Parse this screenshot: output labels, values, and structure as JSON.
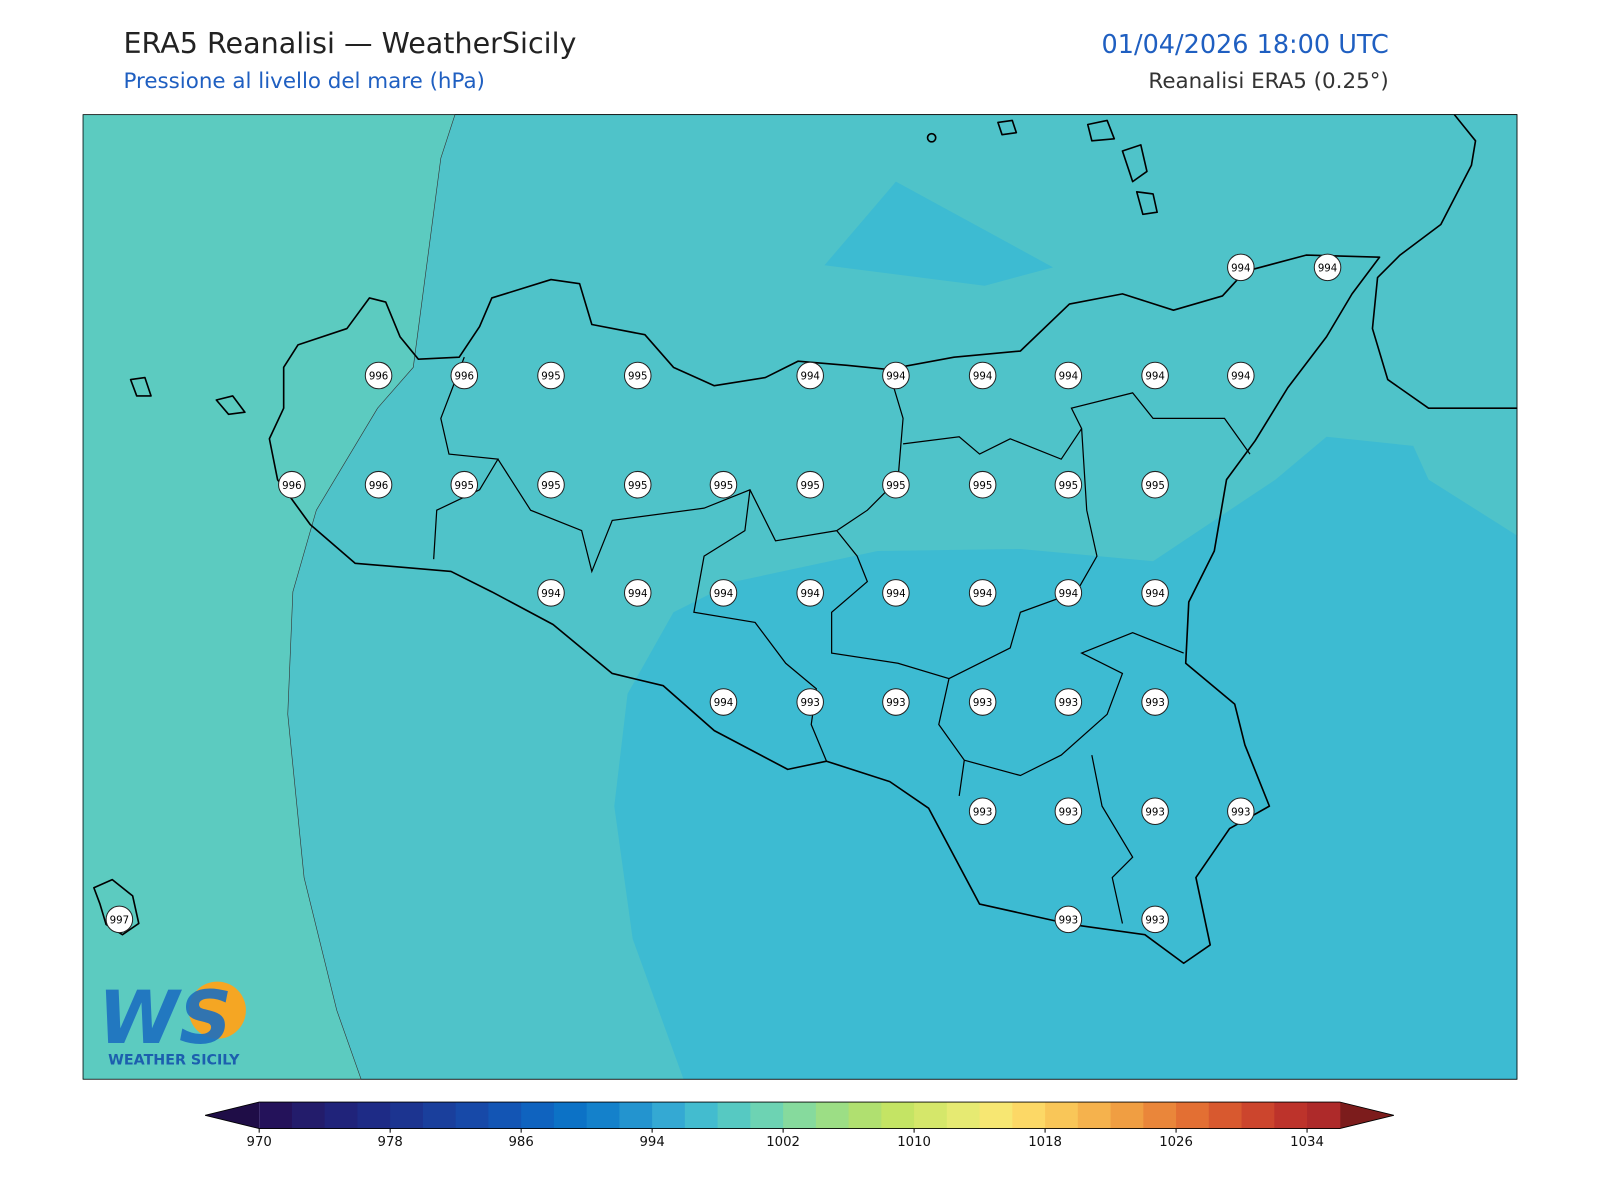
{
  "header": {
    "title": "ERA5 Reanalisi — WeatherSicily",
    "subtitle": "Pressione al livello del mare (hPa)",
    "datetime": "01/04/2026 18:00 UTC",
    "source": "Reanalisi ERA5 (0.25°)"
  },
  "stations": [
    994,
    994,
    996,
    996,
    995,
    995,
    994,
    994,
    994,
    994,
    994,
    994,
    996,
    996,
    995,
    995,
    995,
    995,
    995,
    995,
    995,
    995,
    995,
    994,
    994,
    994,
    994,
    994,
    994,
    994,
    994,
    994,
    993,
    993,
    993,
    993,
    993,
    993,
    993,
    993,
    993,
    997,
    993,
    993
  ],
  "colorbar": {
    "min": 970,
    "step": 2,
    "under": "#1f0d47",
    "over": "#7c1c1c",
    "colors": [
      "#24125a",
      "#231c6b",
      "#20237a",
      "#1e2b86",
      "#1c3490",
      "#1a3f9c",
      "#1749a8",
      "#1355b4",
      "#0f63bf",
      "#0c72c6",
      "#1481cb",
      "#2394cf",
      "#34a9d3",
      "#43bccf",
      "#56c9c2",
      "#6dd3b3",
      "#86da9d",
      "#9cde85",
      "#b0e070",
      "#c4e464",
      "#d5e76a",
      "#e6ea72",
      "#f7e772",
      "#fcd866",
      "#f9c658",
      "#f5b24d",
      "#f09e42",
      "#ea863a",
      "#e36f33",
      "#d8592f",
      "#cc452d",
      "#bd332b",
      "#ae2a2a"
    ],
    "ticks": [
      970,
      978,
      986,
      994,
      1002,
      1010,
      1018,
      1026,
      1034
    ]
  },
  "logo": {
    "mark": "WS",
    "text": "WEATHER SICILY"
  }
}
